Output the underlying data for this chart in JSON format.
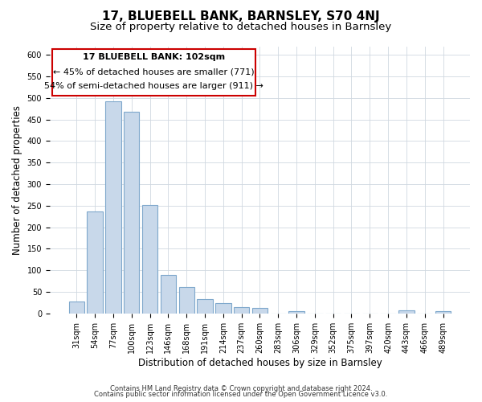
{
  "title": "17, BLUEBELL BANK, BARNSLEY, S70 4NJ",
  "subtitle": "Size of property relative to detached houses in Barnsley",
  "xlabel": "Distribution of detached houses by size in Barnsley",
  "ylabel": "Number of detached properties",
  "bar_labels": [
    "31sqm",
    "54sqm",
    "77sqm",
    "100sqm",
    "123sqm",
    "146sqm",
    "168sqm",
    "191sqm",
    "214sqm",
    "237sqm",
    "260sqm",
    "283sqm",
    "306sqm",
    "329sqm",
    "352sqm",
    "375sqm",
    "397sqm",
    "420sqm",
    "443sqm",
    "466sqm",
    "489sqm"
  ],
  "bar_values": [
    27,
    236,
    492,
    468,
    251,
    90,
    62,
    33,
    24,
    14,
    12,
    0,
    6,
    0,
    0,
    0,
    0,
    0,
    7,
    0,
    5
  ],
  "bar_color": "#c8d8ea",
  "bar_edge_color": "#7fa8cc",
  "ylim": [
    0,
    620
  ],
  "yticks": [
    0,
    50,
    100,
    150,
    200,
    250,
    300,
    350,
    400,
    450,
    500,
    550,
    600
  ],
  "annotation_line1": "17 BLUEBELL BANK: 102sqm",
  "annotation_line2": "← 45% of detached houses are smaller (771)",
  "annotation_line3": "54% of semi-detached houses are larger (911) →",
  "footer_line1": "Contains HM Land Registry data © Crown copyright and database right 2024.",
  "footer_line2": "Contains public sector information licensed under the Open Government Licence v3.0.",
  "background_color": "#ffffff",
  "grid_color": "#d0d8e0",
  "title_fontsize": 11,
  "subtitle_fontsize": 9.5,
  "axis_label_fontsize": 8.5,
  "tick_fontsize": 7,
  "annotation_fontsize": 8,
  "footer_fontsize": 6
}
